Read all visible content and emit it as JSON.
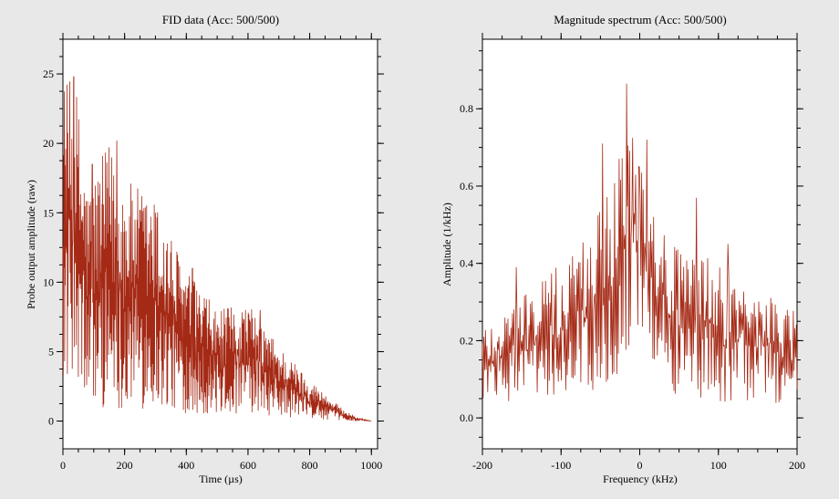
{
  "chart_data": [
    {
      "type": "line",
      "title": "FID data (Acc: 500/500)",
      "xlabel": "Time (µs)",
      "ylabel": "Probe output amplitude (raw)",
      "xlim": [
        0,
        1020
      ],
      "ylim": [
        -2,
        27.5
      ],
      "x_ticks": [
        0,
        200,
        400,
        600,
        800,
        1000
      ],
      "y_ticks": [
        0,
        5,
        10,
        15,
        20,
        25
      ],
      "x_tick_labels": [
        "0",
        "200",
        "400",
        "600",
        "800",
        "1000"
      ],
      "y_tick_labels": [
        "0",
        "5",
        "10",
        "15",
        "20",
        "25"
      ],
      "grid": false,
      "line_color": "#a52a16",
      "series": [
        {
          "x_range": [
            0,
            1000
          ],
          "n_points": 900,
          "envelope": {
            "x": [
              0,
              20,
              40,
              80,
              150,
              200,
              300,
              400,
              500,
              600,
              700,
              800,
              900,
              950,
              1000
            ],
            "y_max": [
              25,
              24.5,
              24.8,
              17,
              20,
              17.5,
              16,
              11,
              8,
              8.5,
              5.5,
              3,
              1,
              0.3,
              0
            ],
            "y_min": [
              2,
              1,
              0,
              0,
              0,
              0,
              0,
              0,
              0,
              0,
              0,
              0,
              0,
              0,
              0
            ]
          },
          "peaks": [
            {
              "x": 35,
              "y": 24.8
            },
            {
              "x": 175,
              "y": 20.2
            },
            {
              "x": 95,
              "y": 18.5
            },
            {
              "x": 240,
              "y": 14.5
            },
            {
              "x": 300,
              "y": 15.0
            },
            {
              "x": 420,
              "y": 11.0
            },
            {
              "x": 640,
              "y": 8.0
            }
          ]
        }
      ]
    },
    {
      "type": "line",
      "title": "Magnitude spectrum (Acc: 500/500)",
      "xlabel": "Frequency (kHz)",
      "ylabel": "Amplitude (1/kHz)",
      "xlim": [
        -200,
        200
      ],
      "ylim": [
        -0.08,
        0.98
      ],
      "x_ticks": [
        -200,
        -100,
        0,
        100,
        200
      ],
      "y_ticks": [
        0.0,
        0.2,
        0.4,
        0.6,
        0.8
      ],
      "x_tick_labels": [
        "-200",
        "-100",
        "0",
        "100",
        "200"
      ],
      "y_tick_labels": [
        "0.0",
        "0.2",
        "0.4",
        "0.6",
        "0.8"
      ],
      "grid": false,
      "line_color": "#a52a16",
      "series": [
        {
          "x_range": [
            -200,
            200
          ],
          "n_points": 420,
          "envelope": {
            "x": [
              -200,
              -150,
              -100,
              -50,
              -30,
              -15,
              0,
              15,
              30,
              50,
              100,
              150,
              200
            ],
            "y_max": [
              0.25,
              0.33,
              0.4,
              0.55,
              0.65,
              0.84,
              0.7,
              0.62,
              0.5,
              0.45,
              0.4,
              0.35,
              0.28
            ],
            "y_min": [
              0.02,
              0.02,
              0.03,
              0.05,
              0.08,
              0.15,
              0.15,
              0.1,
              0.06,
              0.03,
              0.02,
              0.02,
              0.02
            ]
          },
          "peaks": [
            {
              "x": -17,
              "y": 0.865
            },
            {
              "x": 9,
              "y": 0.72
            },
            {
              "x": -47,
              "y": 0.71
            },
            {
              "x": -26,
              "y": 0.67
            },
            {
              "x": -1,
              "y": 0.65
            },
            {
              "x": 72,
              "y": 0.57
            },
            {
              "x": -157,
              "y": 0.39
            },
            {
              "x": 112,
              "y": 0.45
            }
          ]
        }
      ]
    }
  ]
}
